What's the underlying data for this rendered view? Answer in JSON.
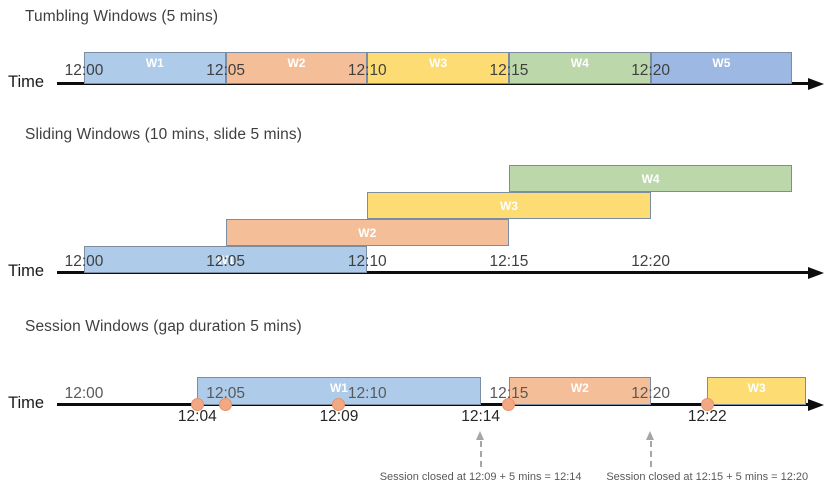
{
  "palette": {
    "blue": "#AECBEA",
    "orange": "#F4BE98",
    "yellow": "#FCDC73",
    "green": "#BCD7A9",
    "periwinkle": "#9DB8E2",
    "box_border": "#7B8CA3",
    "axis": "#0D0D0D",
    "dot_fill": "#F2A983",
    "dot_border": "#E8926A",
    "tick_text": "#595959",
    "annotation_text": "#595959",
    "arrow_gray": "#A6A6A6"
  },
  "chart_data": [
    {
      "type": "timeline",
      "id": "tumbling",
      "title": "Tumbling Windows (5 mins)",
      "axis_label": "Time",
      "ticks": [
        "12:00",
        "12:05",
        "12:10",
        "12:15",
        "12:20"
      ],
      "windows": [
        {
          "label": "W1",
          "start": "12:00",
          "end": "12:05",
          "color": "blue"
        },
        {
          "label": "W2",
          "start": "12:05",
          "end": "12:10",
          "color": "orange"
        },
        {
          "label": "W3",
          "start": "12:10",
          "end": "12:15",
          "color": "yellow"
        },
        {
          "label": "W4",
          "start": "12:15",
          "end": "12:20",
          "color": "green"
        },
        {
          "label": "W5",
          "start": "12:20",
          "end": "12:25",
          "color": "periwinkle"
        }
      ]
    },
    {
      "type": "timeline",
      "id": "sliding",
      "title": "Sliding Windows (10 mins, slide 5 mins)",
      "axis_label": "Time",
      "ticks": [
        "12:00",
        "12:05",
        "12:10",
        "12:15",
        "12:20"
      ],
      "windows": [
        {
          "label": "W1",
          "start": "12:00",
          "end": "12:10",
          "color": "blue"
        },
        {
          "label": "W2",
          "start": "12:05",
          "end": "12:15",
          "color": "orange"
        },
        {
          "label": "W3",
          "start": "12:10",
          "end": "12:20",
          "color": "yellow"
        },
        {
          "label": "W4",
          "start": "12:15",
          "end": "12:25",
          "color": "green"
        }
      ]
    },
    {
      "type": "timeline",
      "id": "session",
      "title": "Session Windows (gap duration 5 mins)",
      "axis_label": "Time",
      "ticks": [
        "12:00",
        "12:05",
        "12:10",
        "12:15",
        "12:20"
      ],
      "windows": [
        {
          "label": "W1",
          "start": "12:04",
          "end": "12:14",
          "color": "blue"
        },
        {
          "label": "W2",
          "start": "12:15",
          "end": "12:20",
          "color": "orange"
        },
        {
          "label": "W3",
          "start": "12:22",
          "end": "12:26",
          "color": "yellow"
        }
      ],
      "events": [
        "12:04",
        "12:05",
        "12:09",
        "12:15",
        "12:22"
      ],
      "event_labels": [
        {
          "time": "12:04",
          "text": "12:04"
        },
        {
          "time": "12:09",
          "text": "12:09"
        },
        {
          "time": "12:14",
          "text": "12:14"
        },
        {
          "time": "12:22",
          "text": "12:22"
        }
      ],
      "annotations": [
        {
          "text": "Session closed at 12:09 + 5 mins = 12:14",
          "arrow_time": "12:14",
          "text_center_time": "12:14"
        },
        {
          "text": "Session closed at 12:15 + 5 mins = 12:20",
          "arrow_time": "12:20",
          "text_center_time": "12:22"
        }
      ]
    }
  ]
}
